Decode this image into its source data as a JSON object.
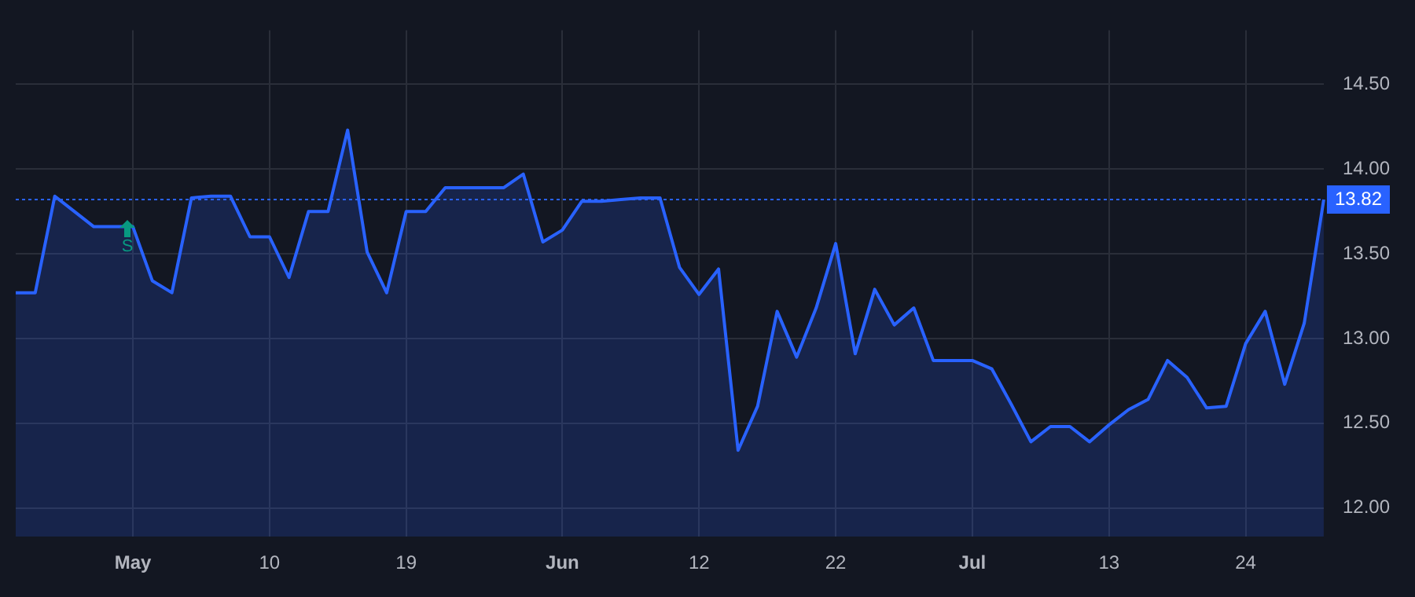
{
  "chart_data": {
    "type": "area",
    "categories": [
      null,
      null,
      null,
      null,
      null,
      null,
      "May",
      null,
      null,
      null,
      null,
      null,
      null,
      "10",
      null,
      null,
      null,
      null,
      null,
      null,
      "19",
      null,
      null,
      null,
      null,
      null,
      null,
      null,
      "Jun",
      null,
      null,
      null,
      null,
      null,
      null,
      "12",
      null,
      null,
      null,
      null,
      null,
      null,
      "22",
      null,
      null,
      null,
      null,
      null,
      null,
      "Jul",
      null,
      null,
      null,
      null,
      null,
      null,
      "13",
      null,
      null,
      null,
      null,
      null,
      null,
      "24",
      null,
      null,
      null,
      null
    ],
    "values": [
      13.27,
      13.27,
      13.84,
      13.75,
      13.66,
      13.66,
      13.66,
      13.34,
      13.27,
      13.83,
      13.84,
      13.84,
      13.6,
      13.6,
      13.36,
      13.75,
      13.75,
      14.23,
      13.51,
      13.27,
      13.75,
      13.75,
      13.89,
      13.89,
      13.89,
      13.89,
      13.97,
      13.57,
      13.64,
      13.81,
      13.81,
      13.82,
      13.83,
      13.83,
      13.42,
      13.26,
      13.41,
      12.34,
      12.6,
      13.16,
      12.89,
      13.18,
      13.56,
      12.91,
      13.29,
      13.08,
      13.18,
      12.87,
      12.87,
      12.87,
      12.82,
      12.61,
      12.39,
      12.48,
      12.48,
      12.39,
      12.49,
      12.58,
      12.64,
      12.87,
      12.77,
      12.59,
      12.6,
      12.97,
      13.16,
      12.73,
      13.09,
      13.82
    ],
    "color": "#2962ff",
    "ylim": [
      11.83,
      14.82
    ],
    "yticks": [
      {
        "value": 12,
        "label": "12.00"
      },
      {
        "value": 12.5,
        "label": "12.50"
      },
      {
        "value": 13,
        "label": "13.00"
      },
      {
        "value": 13.5,
        "label": "13.50"
      },
      {
        "value": 14,
        "label": "14.00"
      },
      {
        "value": 14.5,
        "label": "14.50"
      }
    ],
    "ref_lines": [
      {
        "axis": "y",
        "value": 13.82,
        "label": "13.82",
        "color": "#2962ff",
        "line_style": "dotted"
      }
    ],
    "annotations": [
      "S"
    ],
    "grid": true,
    "legend": false,
    "marker": "none",
    "line_style": "solid"
  }
}
